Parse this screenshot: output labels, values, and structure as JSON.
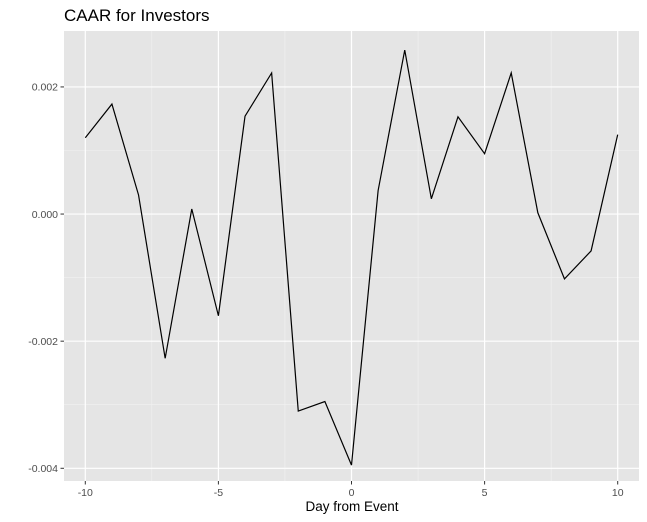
{
  "chart_data": {
    "type": "line",
    "title": "CAAR for Investors",
    "xlabel": "Day from Event",
    "ylabel": "",
    "x": [
      -10,
      -9,
      -8,
      -7,
      -6,
      -5,
      -4,
      -3,
      -2,
      -1,
      0,
      1,
      2,
      3,
      4,
      5,
      6,
      7,
      8,
      9,
      10
    ],
    "series": [
      {
        "values": [
          0.0012,
          0.00173,
          0.0003,
          -0.00227,
          8e-05,
          -0.0016,
          0.00154,
          0.00222,
          -0.0031,
          -0.00295,
          -0.00395,
          0.00037,
          0.00258,
          0.00024,
          0.00153,
          0.00095,
          0.00222,
          2e-05,
          -0.00102,
          -0.00058,
          0.00125
        ]
      }
    ],
    "xlim": [
      -10.8,
      10.8
    ],
    "ylim": [
      -0.0042,
      0.00288
    ],
    "x_ticks": [
      -10,
      -5,
      0,
      5,
      10
    ],
    "x_tick_labels": [
      "-10",
      "-5",
      "0",
      "5",
      "10"
    ],
    "y_ticks": [
      -0.004,
      -0.002,
      0,
      0.002
    ],
    "y_tick_labels": [
      "-0.004",
      "-0.002",
      "0.000",
      "0.002"
    ],
    "grid": true,
    "legend": "none",
    "colors": {
      "panel_background": "#e5e5e5",
      "grid_major": "#ffffff",
      "grid_minor": "#f2f2f2",
      "line": "#000000",
      "tick_text": "#4d4d4d"
    }
  }
}
